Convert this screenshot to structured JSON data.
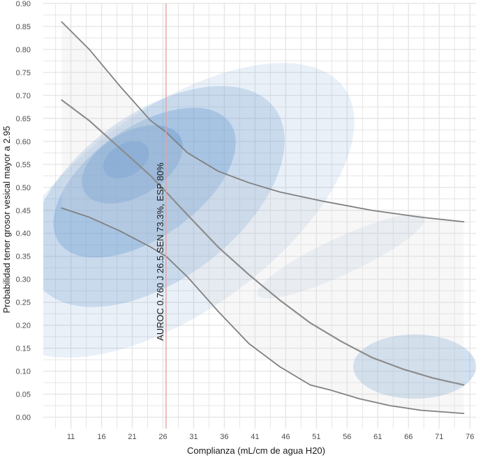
{
  "chart_data": {
    "type": "line",
    "title": "",
    "xlabel": "Complianza (mL/cm de agua H20)",
    "ylabel": "Probabilidad tener grosor vesical mayor a 2.95",
    "xlim": [
      6.5,
      77
    ],
    "ylim": [
      -0.025,
      0.9
    ],
    "x_ticks": [
      11,
      16,
      21,
      26,
      31,
      36,
      41,
      46,
      51,
      56,
      61,
      66,
      71,
      76
    ],
    "y_ticks": [
      0.0,
      0.05,
      0.1,
      0.15,
      0.2,
      0.25,
      0.3,
      0.35,
      0.4,
      0.45,
      0.5,
      0.55,
      0.6,
      0.65,
      0.7,
      0.75,
      0.8,
      0.85,
      0.9
    ],
    "y_tick_labels": [
      "0.00",
      "0.05",
      "0.10",
      "0.15",
      "0.20",
      "0.25",
      "0.30",
      "0.35",
      "0.40",
      "0.45",
      "0.50",
      "0.55",
      "0.60",
      "0.65",
      "0.70",
      "0.75",
      "0.80",
      "0.85",
      "0.90"
    ],
    "grid": true,
    "series": [
      {
        "name": "upper-ci",
        "color": "#808080",
        "x": [
          9.5,
          14,
          19,
          24,
          26.5,
          30,
          35,
          40,
          45,
          52,
          60,
          68,
          75
        ],
        "y": [
          0.86,
          0.8,
          0.72,
          0.645,
          0.62,
          0.575,
          0.535,
          0.51,
          0.49,
          0.47,
          0.45,
          0.435,
          0.425
        ]
      },
      {
        "name": "fitted",
        "color": "#8c8c8c",
        "x": [
          9.5,
          14,
          19,
          24,
          26.5,
          30,
          35,
          40,
          45,
          50,
          55,
          60,
          65,
          70,
          75
        ],
        "y": [
          0.69,
          0.645,
          0.585,
          0.525,
          0.49,
          0.44,
          0.37,
          0.31,
          0.255,
          0.205,
          0.165,
          0.13,
          0.105,
          0.085,
          0.07
        ]
      },
      {
        "name": "lower-ci",
        "color": "#808080",
        "x": [
          9.5,
          14,
          19,
          24,
          26.5,
          30,
          35,
          40,
          45,
          50,
          53,
          58,
          63,
          68,
          75
        ],
        "y": [
          0.455,
          0.435,
          0.405,
          0.37,
          0.35,
          0.305,
          0.23,
          0.16,
          0.11,
          0.07,
          0.06,
          0.04,
          0.025,
          0.015,
          0.008
        ]
      }
    ],
    "density_contours": [
      {
        "cx": 20,
        "cy": 0.56,
        "rx": 4,
        "ry": 0.035,
        "rot": -30,
        "opacity": 0.55
      },
      {
        "cx": 21,
        "cy": 0.55,
        "rx": 9,
        "ry": 0.07,
        "rot": -30,
        "opacity": 0.45
      },
      {
        "cx": 23,
        "cy": 0.51,
        "rx": 17,
        "ry": 0.12,
        "rot": -35,
        "opacity": 0.35
      },
      {
        "cx": 25,
        "cy": 0.48,
        "rx": 24,
        "ry": 0.18,
        "rot": -37,
        "opacity": 0.25
      },
      {
        "cx": 28,
        "cy": 0.45,
        "rx": 34,
        "ry": 0.22,
        "rot": -36,
        "opacity": 0.15
      },
      {
        "cx": 67,
        "cy": 0.11,
        "rx": 10,
        "ry": 0.07,
        "rot": 0,
        "opacity": 0.3
      },
      {
        "cx": 55,
        "cy": 0.35,
        "rx": 15,
        "ry": 0.04,
        "rot": -25,
        "opacity": 0.12
      }
    ],
    "annotations": [
      {
        "text": "AUROC 0.760 J 26.5 SEN 73.3%, ESP 80%",
        "x": 26.5,
        "y": 0.36,
        "rotation": -90
      }
    ],
    "reference_lines": [
      {
        "axis": "x",
        "value": 26.5,
        "color": "#e8a0a0"
      }
    ],
    "background": "#ffffff",
    "grid_color": "#e6e6e6"
  }
}
